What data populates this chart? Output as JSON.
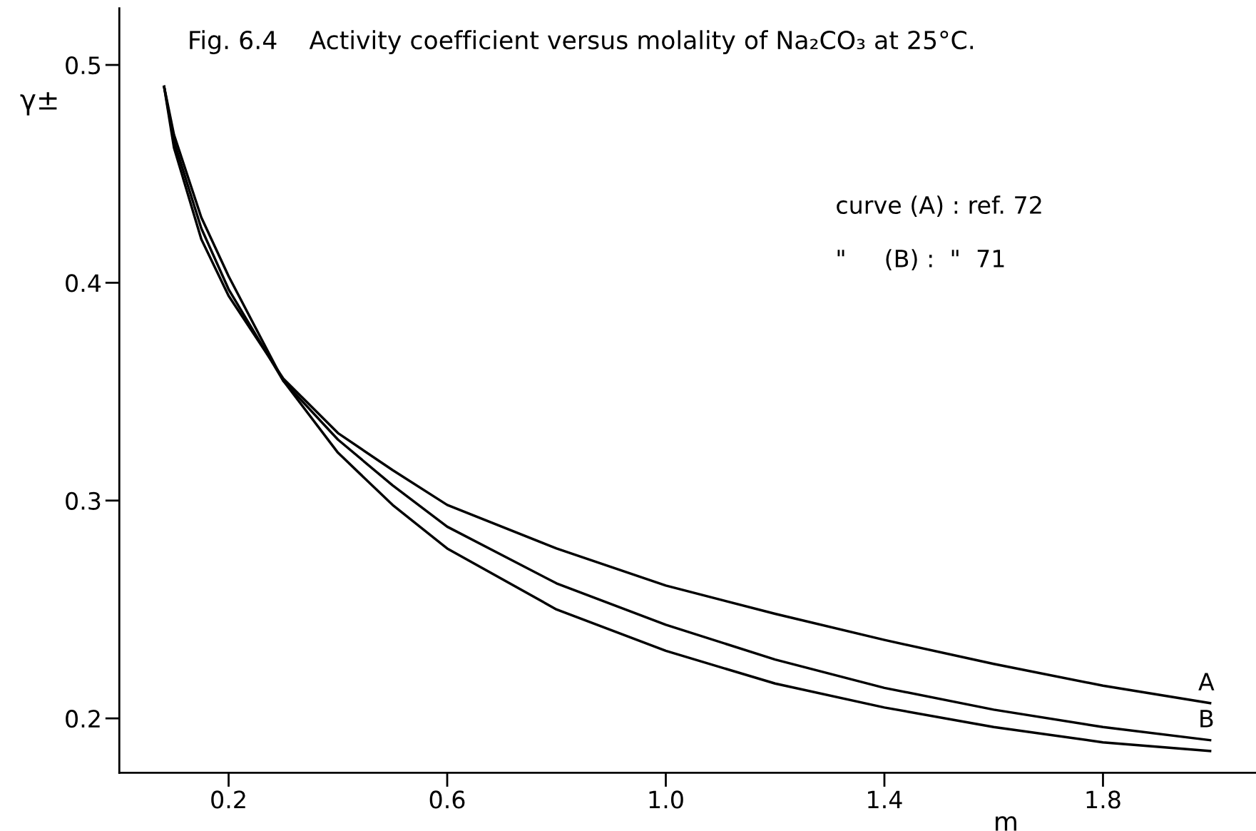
{
  "chart_data": {
    "type": "line",
    "title": "Fig. 6.4    Activity coefficient versus molality of Na₂CO₃ at 25°C.",
    "xlabel": "m",
    "ylabel": "γ±",
    "x": [
      0.082,
      0.1,
      0.15,
      0.2,
      0.3,
      0.4,
      0.5,
      0.6,
      0.8,
      1.0,
      1.2,
      1.4,
      1.6,
      1.8,
      1.996
    ],
    "series": [
      {
        "name": "A",
        "color": "#000000",
        "values": [
          0.49,
          0.462,
          0.42,
          0.394,
          0.356,
          0.331,
          0.314,
          0.298,
          0.278,
          0.261,
          0.248,
          0.236,
          0.225,
          0.215,
          0.207
        ]
      },
      {
        "name": "B",
        "color": "#000000",
        "values": [
          0.49,
          0.465,
          0.425,
          0.397,
          0.355,
          0.328,
          0.307,
          0.288,
          0.262,
          0.243,
          0.227,
          0.214,
          0.204,
          0.196,
          0.19
        ]
      },
      {
        "color": "#000000",
        "values": [
          0.49,
          0.468,
          0.43,
          0.403,
          0.355,
          0.322,
          0.298,
          0.278,
          0.25,
          0.231,
          0.216,
          0.205,
          0.196,
          0.189,
          0.185
        ]
      }
    ],
    "annotations": [
      "curve (A) : ref. 72",
      "\"     (B) :  \"  71"
    ],
    "xlim": [
      0,
      2.08
    ],
    "ylim": [
      0.175,
      0.526
    ],
    "xticks": [
      0.2,
      0.6,
      {
        "value": 1.0,
        "label": "1.0"
      },
      1.4,
      1.8
    ],
    "yticks": [
      0.2,
      0.3,
      0.4,
      0.5
    ],
    "grid": false,
    "legend": false,
    "marker": "none",
    "line_style": "solid"
  }
}
